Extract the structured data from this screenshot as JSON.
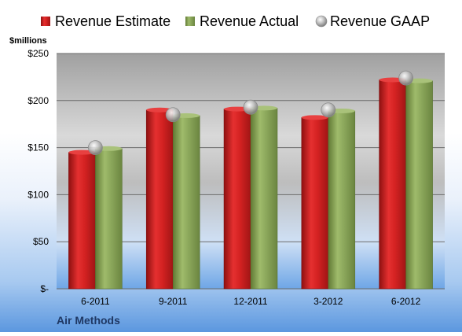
{
  "chart_data": {
    "type": "bar",
    "title": "",
    "company": "Air Methods",
    "ylabel": "$millions",
    "ylim": [
      0,
      250
    ],
    "yticks": [
      0,
      50,
      100,
      150,
      200,
      250
    ],
    "ytick_labels": [
      "$-",
      "$50",
      "$100",
      "$150",
      "$200",
      "$250"
    ],
    "categories": [
      "6-2011",
      "9-2011",
      "12-2011",
      "3-2012",
      "6-2012"
    ],
    "series": [
      {
        "name": "Revenue Estimate",
        "kind": "bar",
        "color": "#cc2222",
        "values": [
          145,
          190,
          191,
          182,
          222
        ]
      },
      {
        "name": "Revenue Actual",
        "kind": "bar",
        "color": "#8aa65a",
        "values": [
          149,
          184,
          192,
          189,
          221
        ]
      },
      {
        "name": "Revenue GAAP",
        "kind": "marker",
        "color": "#b0b0b0",
        "values": [
          150,
          185,
          193,
          190,
          224
        ]
      }
    ],
    "legend_position": "top",
    "grid": true
  }
}
